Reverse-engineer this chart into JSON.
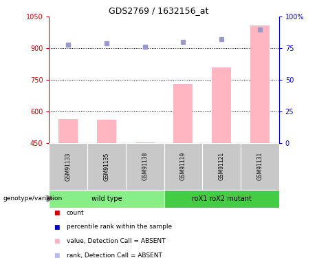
{
  "title": "GDS2769 / 1632156_at",
  "samples": [
    "GSM91133",
    "GSM91135",
    "GSM91138",
    "GSM91119",
    "GSM91121",
    "GSM91131"
  ],
  "bar_values": [
    565,
    560,
    453,
    730,
    810,
    1010
  ],
  "rank_values": [
    78,
    79,
    76,
    80,
    82,
    90
  ],
  "ylim_left": [
    450,
    1050
  ],
  "ylim_right": [
    0,
    100
  ],
  "yticks_left": [
    450,
    600,
    750,
    900,
    1050
  ],
  "ytick_labels_left": [
    "450",
    "600",
    "750",
    "900",
    "1050"
  ],
  "yticks_right": [
    0,
    25,
    50,
    75,
    100
  ],
  "ytick_labels_right": [
    "0",
    "25",
    "50",
    "75",
    "100%"
  ],
  "bar_color": "#FFB6C1",
  "rank_color": "#9999CC",
  "bar_width": 0.5,
  "genotype_label": "genotype/variation",
  "wild_type_color": "#88EE88",
  "mutant_color": "#44CC44",
  "legend_items": [
    {
      "color": "#CC0000",
      "label": "count"
    },
    {
      "color": "#0000CC",
      "label": "percentile rank within the sample"
    },
    {
      "color": "#FFB6C1",
      "label": "value, Detection Call = ABSENT"
    },
    {
      "color": "#BBBBEE",
      "label": "rank, Detection Call = ABSENT"
    }
  ],
  "left_axis_color": "#CC0000",
  "right_axis_color": "#0000CC",
  "grid_yticks": [
    600,
    750,
    900
  ]
}
